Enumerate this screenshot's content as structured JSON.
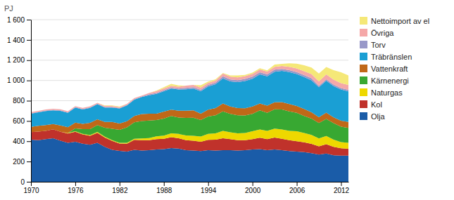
{
  "chart_data": {
    "type": "area",
    "stacked": true,
    "y_label": "PJ",
    "x": [
      1970,
      1971,
      1972,
      1973,
      1974,
      1975,
      1976,
      1977,
      1978,
      1979,
      1980,
      1981,
      1982,
      1983,
      1984,
      1985,
      1986,
      1987,
      1988,
      1989,
      1990,
      1991,
      1992,
      1993,
      1994,
      1995,
      1996,
      1997,
      1998,
      1999,
      2000,
      2001,
      2002,
      2003,
      2004,
      2005,
      2006,
      2007,
      2008,
      2009,
      2010,
      2011,
      2012,
      2013
    ],
    "series": [
      {
        "name": "Olja",
        "color": "#1a5ca8",
        "values": [
          415,
          410,
          420,
          430,
          405,
          385,
          395,
          375,
          365,
          385,
          345,
          315,
          305,
          298,
          315,
          308,
          312,
          318,
          322,
          332,
          328,
          312,
          308,
          303,
          312,
          308,
          312,
          312,
          308,
          312,
          318,
          322,
          312,
          318,
          312,
          303,
          298,
          292,
          282,
          268,
          278,
          262,
          258,
          258
        ]
      },
      {
        "name": "Kol",
        "color": "#c0322b",
        "values": [
          75,
          85,
          82,
          88,
          88,
          92,
          98,
          92,
          88,
          98,
          92,
          88,
          72,
          78,
          98,
          102,
          98,
          102,
          102,
          108,
          102,
          98,
          98,
          92,
          102,
          108,
          118,
          108,
          102,
          98,
          102,
          112,
          108,
          118,
          112,
          108,
          102,
          98,
          92,
          82,
          92,
          82,
          72,
          68
        ]
      },
      {
        "name": "Naturgas",
        "color": "#eed800",
        "values": [
          0,
          0,
          0,
          0,
          0,
          4,
          5,
          5,
          8,
          8,
          8,
          8,
          8,
          8,
          12,
          18,
          22,
          28,
          32,
          38,
          42,
          48,
          48,
          52,
          58,
          62,
          72,
          68,
          68,
          72,
          78,
          82,
          82,
          88,
          92,
          92,
          98,
          92,
          88,
          78,
          82,
          72,
          62,
          58
        ]
      },
      {
        "name": "Kärnenergi",
        "color": "#38a832",
        "values": [
          0,
          0,
          0,
          0,
          0,
          0,
          28,
          48,
          58,
          68,
          88,
          112,
          128,
          152,
          162,
          172,
          172,
          162,
          168,
          172,
          162,
          172,
          178,
          162,
          172,
          178,
          192,
          182,
          178,
          172,
          172,
          188,
          178,
          192,
          198,
          192,
          182,
          168,
          162,
          152,
          168,
          162,
          152,
          148
        ]
      },
      {
        "name": "Vattenkraft",
        "color": "#c06818",
        "values": [
          52,
          58,
          58,
          52,
          62,
          58,
          58,
          52,
          62,
          58,
          58,
          68,
          62,
          62,
          62,
          68,
          68,
          62,
          68,
          62,
          68,
          72,
          72,
          62,
          68,
          72,
          78,
          72,
          72,
          72,
          72,
          68,
          72,
          68,
          72,
          72,
          68,
          68,
          62,
          58,
          62,
          58,
          58,
          58
        ]
      },
      {
        "name": "Träbränslen",
        "color": "#1a9fd4",
        "values": [
          130,
          132,
          138,
          135,
          145,
          142,
          148,
          142,
          148,
          148,
          142,
          142,
          148,
          155,
          162,
          168,
          182,
          195,
          202,
          208,
          208,
          210,
          215,
          222,
          228,
          235,
          248,
          248,
          255,
          268,
          275,
          288,
          288,
          302,
          308,
          315,
          315,
          315,
          315,
          295,
          315,
          308,
          308,
          302
        ]
      },
      {
        "name": "Torv",
        "color": "#9898c8",
        "values": [
          5,
          5,
          5,
          5,
          5,
          5,
          5,
          5,
          5,
          5,
          5,
          5,
          5,
          5,
          5,
          5,
          10,
          10,
          10,
          10,
          10,
          15,
          15,
          15,
          15,
          15,
          20,
          20,
          20,
          20,
          20,
          20,
          20,
          20,
          20,
          20,
          20,
          20,
          20,
          15,
          15,
          15,
          15,
          15
        ]
      },
      {
        "name": "Övriga",
        "color": "#f5a8a8",
        "values": [
          10,
          10,
          10,
          10,
          10,
          10,
          10,
          10,
          10,
          10,
          10,
          10,
          10,
          10,
          10,
          10,
          12,
          18,
          18,
          18,
          18,
          22,
          22,
          22,
          22,
          22,
          28,
          28,
          28,
          28,
          28,
          28,
          28,
          28,
          28,
          32,
          35,
          38,
          42,
          42,
          48,
          48,
          48,
          48
        ]
      },
      {
        "name": "Nettoimport av el",
        "color": "#f5e878",
        "values": [
          0,
          0,
          0,
          0,
          0,
          0,
          0,
          0,
          0,
          0,
          5,
          5,
          5,
          0,
          0,
          0,
          0,
          5,
          12,
          18,
          12,
          0,
          0,
          22,
          12,
          12,
          5,
          12,
          18,
          12,
          12,
          12,
          12,
          22,
          22,
          35,
          48,
          58,
          65,
          78,
          72,
          95,
          108,
          95
        ]
      }
    ],
    "xlim": [
      1970,
      2013
    ],
    "xticks": [
      1970,
      1976,
      1982,
      1988,
      1994,
      2000,
      2006,
      2012
    ],
    "ylim": [
      0,
      1600
    ],
    "yticks": [
      0,
      200,
      400,
      600,
      800,
      {
        "value": 1000,
        "label": "1 000"
      },
      {
        "value": 1200,
        "label": "1 200"
      },
      {
        "value": 1400,
        "label": "1 400"
      },
      {
        "value": 1600,
        "label": "1 600"
      }
    ],
    "grid": true,
    "legend": "right"
  }
}
